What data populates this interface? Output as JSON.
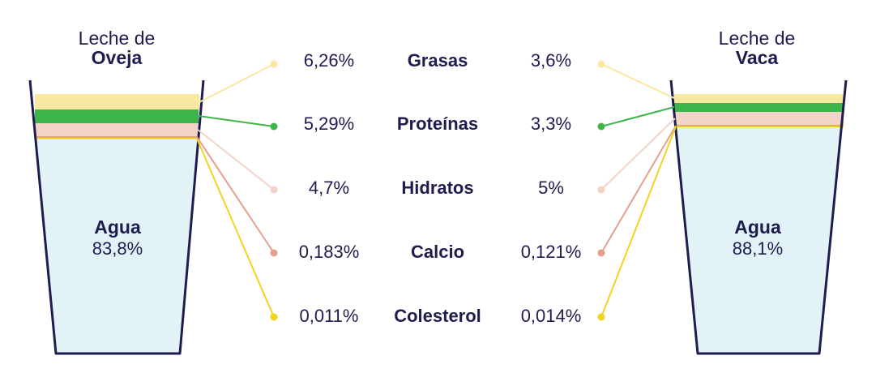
{
  "colors": {
    "ink": "#1f1d4f",
    "water": "#e2f3f8",
    "grasas": "#fbe8a0",
    "proteinas": "#3db549",
    "hidratos": "#f2d3c8",
    "calcio": "#e3a08c",
    "colesterol": "#f1d41f"
  },
  "left_glass": {
    "title_line1": "Leche de",
    "title_line2": "Oveja",
    "water_label": "Agua",
    "water_value": "83,8%"
  },
  "right_glass": {
    "title_line1": "Leche de",
    "title_line2": "Vaca",
    "water_label": "Agua",
    "water_value": "88,1%"
  },
  "rows": [
    {
      "name": "Grasas",
      "left": "6,26%",
      "right": "3,6%",
      "color_key": "grasas"
    },
    {
      "name": "Proteínas",
      "left": "5,29%",
      "right": "3,3%",
      "color_key": "proteinas"
    },
    {
      "name": "Hidratos",
      "left": "4,7%",
      "right": "5%",
      "color_key": "hidratos"
    },
    {
      "name": "Calcio",
      "left": "0,183%",
      "right": "0,121%",
      "color_key": "calcio"
    },
    {
      "name": "Colesterol",
      "left": "0,011%",
      "right": "0,014%",
      "color_key": "colesterol"
    }
  ]
}
